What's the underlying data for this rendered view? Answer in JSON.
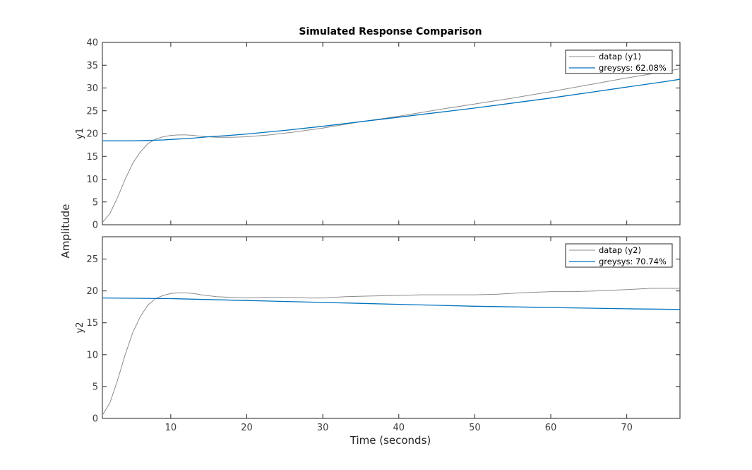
{
  "chart_data": {
    "type": "line",
    "title": "Simulated Response Comparison",
    "xlabel": "Time (seconds)",
    "ylabel": "Amplitude",
    "xlim": [
      1,
      77
    ],
    "x_ticks": [
      10,
      20,
      30,
      40,
      50,
      60,
      70
    ],
    "grid": false,
    "legend_position": "top-right",
    "subplots": [
      {
        "ylabel": "y1",
        "ylim": [
          0,
          40
        ],
        "y_ticks": [
          0,
          5,
          10,
          15,
          20,
          25,
          30,
          35,
          40
        ],
        "series": [
          {
            "name": "datap (y1)",
            "color": "#8c8c8c",
            "x": [
              1,
              2,
              3,
              4,
              5,
              6,
              7,
              8,
              9,
              10,
              11,
              12,
              13,
              14,
              16,
              18,
              20,
              23,
              26,
              30,
              35,
              40,
              45,
              50,
              55,
              60,
              65,
              70,
              75,
              77
            ],
            "y": [
              0.5,
              2.5,
              6,
              10,
              13.5,
              16,
              17.8,
              18.8,
              19.3,
              19.6,
              19.7,
              19.7,
              19.6,
              19.4,
              19.2,
              19.2,
              19.3,
              19.7,
              20.3,
              21.2,
              22.6,
              23.8,
              25.2,
              26.5,
              27.8,
              29.2,
              30.7,
              32.2,
              33.6,
              34.2
            ]
          },
          {
            "name": "greysys: 62.08%",
            "color": "#0072bd",
            "x": [
              1,
              3,
              5,
              7,
              9,
              11,
              13,
              15,
              17,
              20,
              25,
              30,
              35,
              40,
              45,
              50,
              55,
              60,
              65,
              70,
              75,
              77
            ],
            "y": [
              18.4,
              18.4,
              18.4,
              18.5,
              18.6,
              18.8,
              19.0,
              19.3,
              19.5,
              19.9,
              20.7,
              21.6,
              22.6,
              23.6,
              24.6,
              25.6,
              26.7,
              27.8,
              29.0,
              30.2,
              31.4,
              31.9
            ]
          }
        ]
      },
      {
        "ylabel": "y2",
        "ylim": [
          0,
          28.5
        ],
        "y_ticks": [
          0,
          5,
          10,
          15,
          20,
          25
        ],
        "series": [
          {
            "name": "datap (y2)",
            "color": "#8c8c8c",
            "x": [
              1,
              2,
              3,
              4,
              5,
              6,
              7,
              8,
              9,
              10,
              11,
              12,
              13,
              14,
              16,
              18,
              20,
              22,
              24,
              26,
              28,
              30,
              33,
              36,
              40,
              43,
              46,
              50,
              53,
              56,
              60,
              63,
              66,
              70,
              73,
              77
            ],
            "y": [
              0.5,
              2.5,
              6,
              10,
              13.5,
              16,
              17.8,
              18.8,
              19.3,
              19.6,
              19.7,
              19.7,
              19.6,
              19.4,
              19.1,
              19.0,
              18.9,
              19.0,
              19.0,
              19.0,
              18.9,
              18.9,
              19.1,
              19.2,
              19.3,
              19.4,
              19.4,
              19.4,
              19.5,
              19.7,
              19.9,
              19.9,
              20.0,
              20.2,
              20.4,
              20.4
            ]
          },
          {
            "name": "greysys: 70.74%",
            "color": "#0072bd",
            "x": [
              1,
              10,
              20,
              30,
              40,
              50,
              60,
              70,
              77
            ],
            "y": [
              18.9,
              18.8,
              18.5,
              18.2,
              17.9,
              17.6,
              17.4,
              17.2,
              17.1
            ]
          }
        ]
      }
    ]
  }
}
